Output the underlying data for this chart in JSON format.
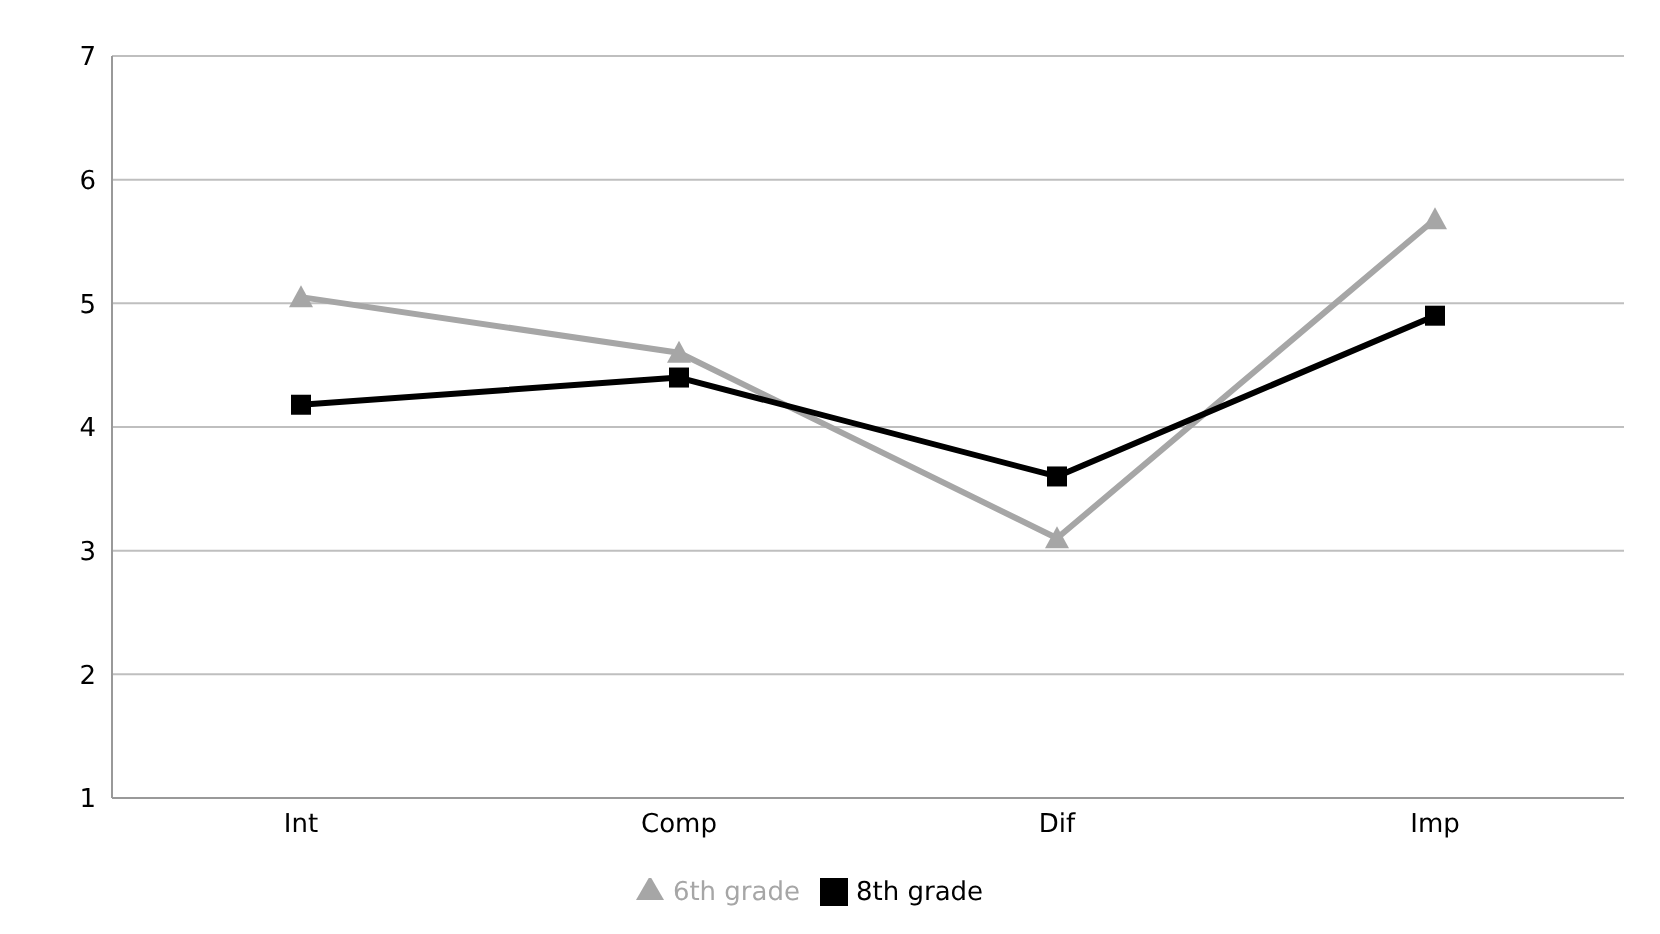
{
  "chart_data": {
    "type": "line",
    "categories": [
      "Int",
      "Comp",
      "Dif",
      "Imp"
    ],
    "series": [
      {
        "name": "6th grade",
        "color": "#a6a6a6",
        "marker": "triangle",
        "values": [
          5.05,
          4.6,
          3.1,
          5.68
        ]
      },
      {
        "name": "8th grade",
        "color": "#000000",
        "marker": "square",
        "values": [
          4.18,
          4.4,
          3.6,
          4.9
        ]
      }
    ],
    "ylim": [
      1,
      7
    ],
    "yticks": [
      1,
      2,
      3,
      4,
      5,
      6,
      7
    ],
    "grid": "y",
    "legend": "bottom",
    "line_style": "solid"
  }
}
